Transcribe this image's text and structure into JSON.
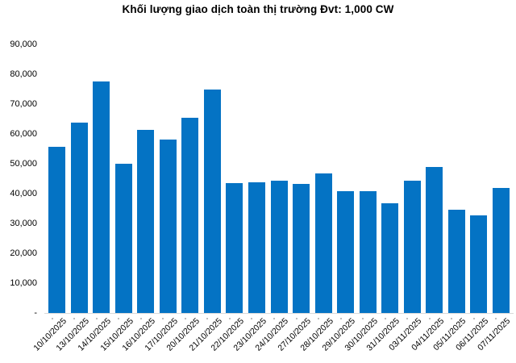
{
  "chart_data": {
    "type": "bar",
    "title": "Khối lượng giao dịch toàn thị trường Đvt: 1,000 CW",
    "categories": [
      "10/10/2025",
      "13/10/2025",
      "14/10/2025",
      "15/10/2025",
      "16/10/2025",
      "17/10/2025",
      "20/10/2025",
      "21/10/2025",
      "22/10/2025",
      "23/10/2025",
      "24/10/2025",
      "27/10/2025",
      "28/10/2025",
      "29/10/2025",
      "30/10/2025",
      "31/10/2025",
      "03/11/2025",
      "04/11/2025",
      "05/11/2025",
      "06/11/2025",
      "07/11/2025"
    ],
    "values": [
      55600,
      63800,
      77600,
      50000,
      61400,
      58100,
      65500,
      74800,
      43600,
      43700,
      44400,
      43300,
      46700,
      40700,
      40800,
      36800,
      44300,
      48800,
      34600,
      32700,
      41900
    ],
    "xlabel": "",
    "ylabel": "",
    "ylim": [
      0,
      90000
    ],
    "ytick_step": 10000,
    "ytick_labels": [
      "-",
      "10,000",
      "20,000",
      "30,000",
      "40,000",
      "50,000",
      "60,000",
      "70,000",
      "80,000",
      "90,000"
    ],
    "grid": false,
    "legend": false,
    "bar_color": "#0473C4",
    "axis_color": "#D9D9D9",
    "tick_color": "#BFBFBF",
    "text_color": "#000000"
  }
}
